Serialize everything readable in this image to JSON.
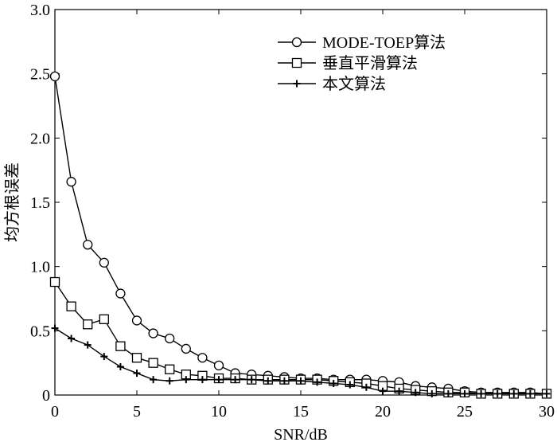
{
  "chart_data": {
    "type": "line",
    "xlabel": "SNR/dB",
    "ylabel": "均方根误差",
    "xlim": [
      0,
      30
    ],
    "ylim": [
      0,
      3
    ],
    "x_ticks": [
      0,
      5,
      10,
      15,
      20,
      25,
      30
    ],
    "y_ticks": [
      0,
      0.5,
      1.0,
      1.5,
      2.0,
      2.5,
      3.0
    ],
    "y_tick_labels": [
      "0",
      "0.5",
      "1.0",
      "1.5",
      "2.0",
      "2.5",
      "3.0"
    ],
    "grid": false,
    "legend_position": "top-right",
    "x": [
      0,
      1,
      2,
      3,
      4,
      5,
      6,
      7,
      8,
      9,
      10,
      11,
      12,
      13,
      14,
      15,
      16,
      17,
      18,
      19,
      20,
      21,
      22,
      23,
      24,
      25,
      26,
      27,
      28,
      29,
      30
    ],
    "series": [
      {
        "name": "MODE-TOEP算法",
        "marker": "circle",
        "values": [
          2.48,
          1.66,
          1.17,
          1.03,
          0.79,
          0.58,
          0.48,
          0.44,
          0.36,
          0.29,
          0.23,
          0.17,
          0.16,
          0.15,
          0.14,
          0.13,
          0.13,
          0.12,
          0.12,
          0.12,
          0.11,
          0.1,
          0.07,
          0.06,
          0.05,
          0.03,
          0.02,
          0.02,
          0.02,
          0.02,
          0.01
        ]
      },
      {
        "name": "垂直平滑算法",
        "marker": "square",
        "values": [
          0.88,
          0.69,
          0.55,
          0.59,
          0.38,
          0.29,
          0.25,
          0.2,
          0.16,
          0.15,
          0.13,
          0.13,
          0.12,
          0.12,
          0.12,
          0.12,
          0.12,
          0.11,
          0.1,
          0.09,
          0.07,
          0.05,
          0.04,
          0.03,
          0.02,
          0.02,
          0.01,
          0.01,
          0.01,
          0.01,
          0.01
        ]
      },
      {
        "name": "本文算法",
        "marker": "plus",
        "values": [
          0.52,
          0.44,
          0.39,
          0.3,
          0.22,
          0.17,
          0.12,
          0.11,
          0.12,
          0.12,
          0.12,
          0.12,
          0.12,
          0.11,
          0.11,
          0.11,
          0.1,
          0.09,
          0.08,
          0.06,
          0.03,
          0.03,
          0.02,
          0.01,
          0.01,
          0.01,
          0.01,
          0.01,
          0.01,
          0.01,
          0.01
        ]
      }
    ]
  }
}
